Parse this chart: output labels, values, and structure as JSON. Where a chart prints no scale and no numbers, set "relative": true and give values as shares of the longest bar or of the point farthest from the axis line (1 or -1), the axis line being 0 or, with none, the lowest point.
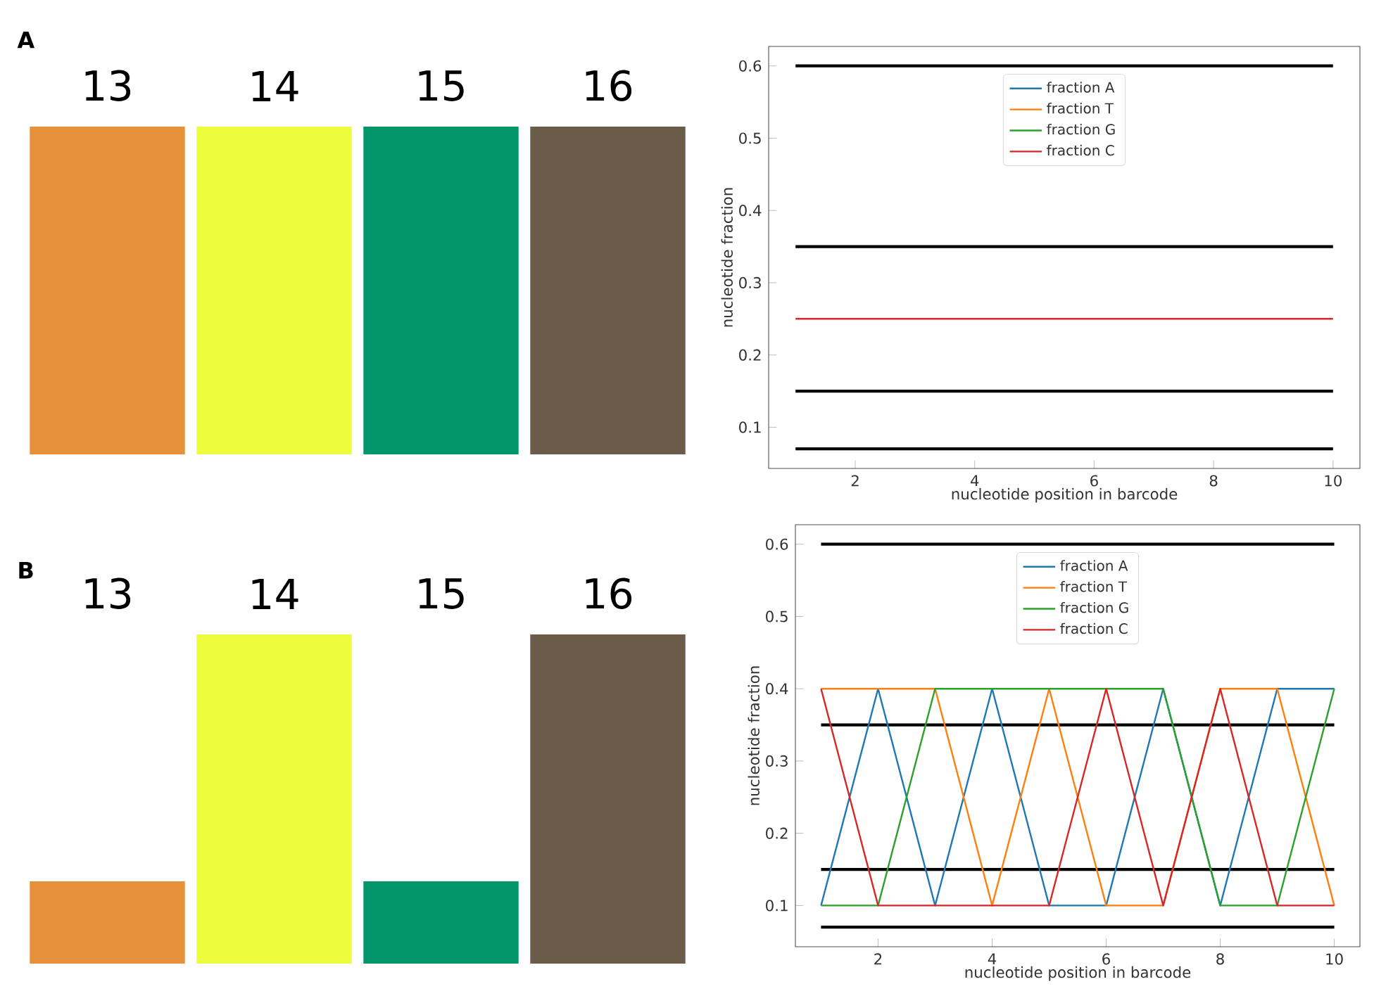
{
  "chart_data": [
    {
      "type": "bar",
      "relative": true,
      "categories": [
        "13",
        "14",
        "15",
        "16"
      ],
      "values": [
        1,
        1,
        1,
        1
      ],
      "colors": [
        "#e6913a",
        "#ecfd3e",
        "#02966a",
        "#6a5c48"
      ],
      "annotations": [
        "A"
      ]
    },
    {
      "type": "line",
      "x": [
        1,
        2,
        3,
        4,
        5,
        6,
        7,
        8,
        9,
        10
      ],
      "xlabel": "nucleotide position in barcode",
      "ylabel": "nucleotide fraction",
      "xlim": [
        0.55,
        10.45
      ],
      "ylim": [
        0.043,
        0.627
      ],
      "xticks": [
        2,
        4,
        6,
        8,
        10
      ],
      "yticks": [
        0.1,
        0.2,
        0.3,
        0.4,
        0.5,
        0.6
      ],
      "legend": "top",
      "series": [
        {
          "name": "fraction A",
          "color": "#1f77b4",
          "values": [
            null,
            null,
            null,
            null,
            null,
            null,
            null,
            null,
            null,
            null
          ]
        },
        {
          "name": "fraction T",
          "color": "#ff7f0e",
          "values": [
            null,
            null,
            null,
            null,
            null,
            null,
            null,
            null,
            null,
            null
          ]
        },
        {
          "name": "fraction G",
          "color": "#2ca02c",
          "values": [
            null,
            null,
            null,
            null,
            null,
            null,
            null,
            null,
            null,
            null
          ]
        },
        {
          "name": "fraction C",
          "color": "#d62728",
          "values": [
            0.25,
            0.25,
            0.25,
            0.25,
            0.25,
            0.25,
            0.25,
            0.25,
            0.25,
            0.25
          ]
        }
      ],
      "ref_lines": [
        {
          "axis": "y",
          "value": 0.6,
          "color": "#000000"
        },
        {
          "axis": "y",
          "value": 0.35,
          "color": "#000000"
        },
        {
          "axis": "y",
          "value": 0.15,
          "color": "#000000"
        },
        {
          "axis": "y",
          "value": 0.07,
          "color": "#000000"
        }
      ]
    },
    {
      "type": "bar",
      "relative": true,
      "categories": [
        "13",
        "14",
        "15",
        "16"
      ],
      "values": [
        0.25,
        1,
        0.25,
        1
      ],
      "colors": [
        "#e6913a",
        "#ecfd3e",
        "#02966a",
        "#6a5c48"
      ],
      "annotations": [
        "B"
      ]
    },
    {
      "type": "line",
      "x": [
        1,
        2,
        3,
        4,
        5,
        6,
        7,
        8,
        9,
        10
      ],
      "xlabel": "nucleotide position in barcode",
      "ylabel": "nucleotide fraction",
      "xlim": [
        0.55,
        10.45
      ],
      "ylim": [
        0.043,
        0.627
      ],
      "xticks": [
        2,
        4,
        6,
        8,
        10
      ],
      "yticks": [
        0.1,
        0.2,
        0.3,
        0.4,
        0.5,
        0.6
      ],
      "legend": "top",
      "series": [
        {
          "name": "fraction A",
          "color": "#1f77b4",
          "values": [
            0.1,
            0.4,
            0.1,
            0.4,
            0.1,
            0.1,
            0.4,
            0.1,
            0.4,
            0.4
          ]
        },
        {
          "name": "fraction T",
          "color": "#ff7f0e",
          "values": [
            0.4,
            0.4,
            0.4,
            0.1,
            0.4,
            0.1,
            0.1,
            0.4,
            0.4,
            0.1
          ]
        },
        {
          "name": "fraction G",
          "color": "#2ca02c",
          "values": [
            0.1,
            0.1,
            0.4,
            0.4,
            0.4,
            0.4,
            0.4,
            0.1,
            0.1,
            0.4
          ]
        },
        {
          "name": "fraction C",
          "color": "#d62728",
          "values": [
            0.4,
            0.1,
            0.1,
            0.1,
            0.1,
            0.4,
            0.1,
            0.4,
            0.1,
            0.1
          ]
        }
      ],
      "ref_lines": [
        {
          "axis": "y",
          "value": 0.6,
          "color": "#000000"
        },
        {
          "axis": "y",
          "value": 0.35,
          "color": "#000000"
        },
        {
          "axis": "y",
          "value": 0.15,
          "color": "#000000"
        },
        {
          "axis": "y",
          "value": 0.07,
          "color": "#000000"
        }
      ]
    }
  ]
}
